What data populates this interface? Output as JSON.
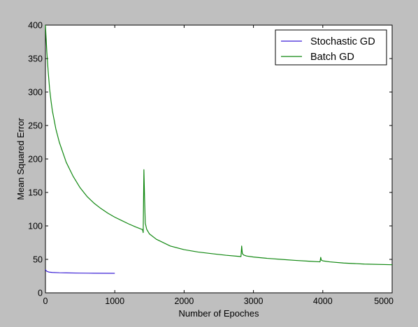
{
  "chart_data": {
    "type": "line",
    "title": "",
    "xlabel": "Number of Epoches",
    "ylabel": "Mean Squared Error",
    "xlim": [
      0,
      5000
    ],
    "ylim": [
      0,
      400
    ],
    "xticks": [
      0,
      1000,
      2000,
      3000,
      4000,
      5000
    ],
    "yticks": [
      0,
      50,
      100,
      150,
      200,
      250,
      300,
      350,
      400
    ],
    "grid": false,
    "legend_position": "top-right",
    "series": [
      {
        "name": "Stochastic GD",
        "color": "#3a1fd6",
        "x": [
          0,
          10,
          25,
          50,
          100,
          200,
          300,
          500,
          700,
          1000
        ],
        "y": [
          35,
          33,
          32,
          31,
          30.5,
          30,
          29.8,
          29.5,
          29.3,
          29.2
        ]
      },
      {
        "name": "Batch GD",
        "color": "#118811",
        "x": [
          0,
          20,
          40,
          60,
          80,
          100,
          150,
          200,
          300,
          400,
          500,
          600,
          700,
          800,
          900,
          1000,
          1100,
          1200,
          1300,
          1400,
          1410,
          1420,
          1430,
          1440,
          1460,
          1500,
          1600,
          1800,
          2000,
          2200,
          2400,
          2600,
          2820,
          2830,
          2840,
          2860,
          2900,
          3000,
          3200,
          3400,
          3600,
          3800,
          3960,
          3970,
          3980,
          4000,
          4100,
          4300,
          4600,
          5000
        ],
        "y": [
          400,
          360,
          330,
          305,
          287,
          272,
          245,
          225,
          195,
          174,
          157,
          144,
          134,
          126,
          119,
          113,
          108,
          103,
          98.5,
          94.5,
          90,
          184,
          140,
          104,
          95,
          88,
          80,
          70,
          64.5,
          61,
          58.5,
          56.2,
          54.2,
          70,
          58.5,
          56.5,
          55,
          53.5,
          51.5,
          50,
          48.5,
          47.3,
          46.3,
          53,
          48.7,
          47.8,
          46.3,
          44.5,
          43,
          42
        ]
      }
    ]
  }
}
